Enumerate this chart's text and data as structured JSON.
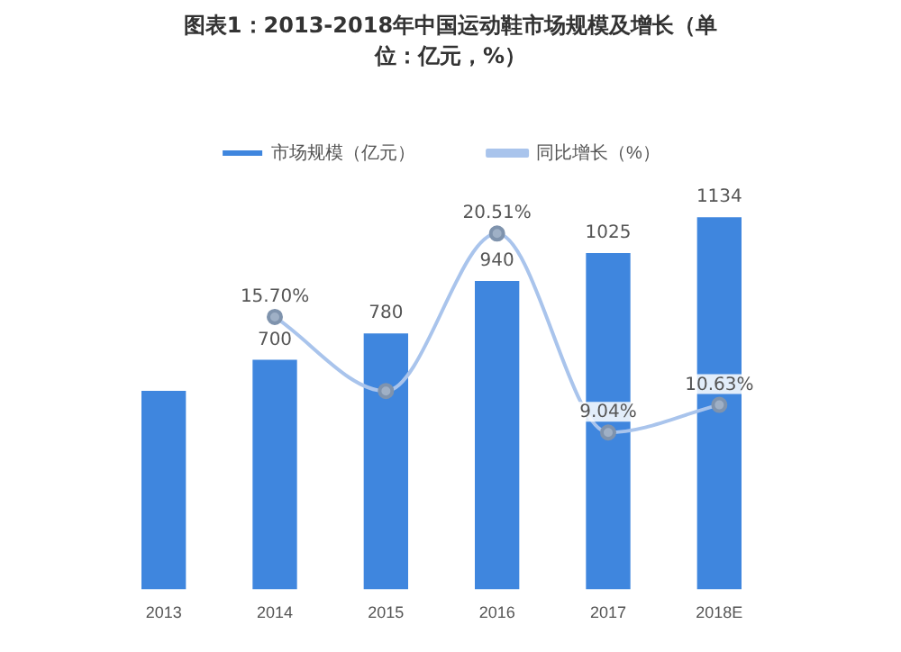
{
  "chart_data": {
    "type": "bar",
    "title": "图表1：2013-2018年中国运动鞋市场规模及增长（单位：亿元，%）",
    "categories": [
      "2013",
      "2014",
      "2015",
      "2016",
      "2017",
      "2018E"
    ],
    "series": [
      {
        "name": "市场规模（亿元）",
        "color": "#3f86de",
        "values": [
          605,
          700,
          780,
          940,
          1025,
          1134
        ],
        "value_labels": [
          null,
          "700",
          "780",
          "940",
          "1025",
          "1134"
        ]
      },
      {
        "name": "同比增长（%）",
        "type": "line",
        "axis": "y2",
        "color": "#a9c4ec",
        "values": [
          null,
          15.7,
          11.43,
          20.51,
          9.04,
          10.63
        ],
        "value_labels": [
          null,
          "15.70%",
          null,
          "20.51%",
          "9.04%",
          "10.63%"
        ]
      }
    ],
    "legend": "top",
    "marker": "circle",
    "grid": false
  }
}
